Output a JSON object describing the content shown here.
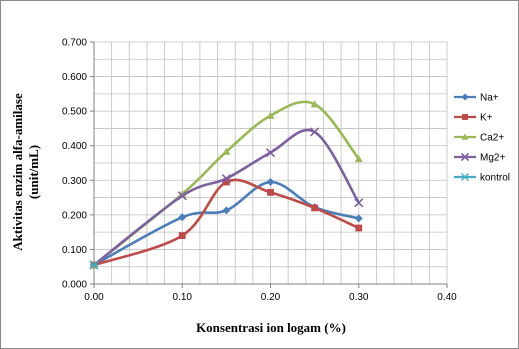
{
  "chart_data": {
    "type": "line",
    "xlabel": "Konsentrasi ion logam (%)",
    "ylabel_line1": "Aktivitas enzim alfa-amilase",
    "ylabel_line2": "(unit/mL)",
    "xlim": [
      0,
      0.4
    ],
    "ylim": [
      0,
      0.7
    ],
    "x_ticks": [
      "0.00",
      "0.10",
      "0.20",
      "0.30",
      "0.40"
    ],
    "y_ticks": [
      "0.000",
      "0.100",
      "0.200",
      "0.300",
      "0.400",
      "0.500",
      "0.600",
      "0.700"
    ],
    "grid": true,
    "smooth": true,
    "legend_position": "right",
    "series": [
      {
        "name": "Na+",
        "color": "#4a7ebb",
        "marker": "diamond",
        "x": [
          0,
          0.1,
          0.15,
          0.2,
          0.25,
          0.3
        ],
        "y": [
          0.055,
          0.193,
          0.213,
          0.295,
          0.222,
          0.19
        ]
      },
      {
        "name": "K+",
        "color": "#be4b48",
        "marker": "square",
        "x": [
          0,
          0.1,
          0.15,
          0.2,
          0.25,
          0.3
        ],
        "y": [
          0.055,
          0.14,
          0.295,
          0.265,
          0.22,
          0.162
        ]
      },
      {
        "name": "Ca2+",
        "color": "#98b954",
        "marker": "triangle",
        "x": [
          0,
          0.1,
          0.15,
          0.2,
          0.25,
          0.3
        ],
        "y": [
          0.055,
          0.26,
          0.383,
          0.487,
          0.52,
          0.362
        ]
      },
      {
        "name": "Mg2+",
        "color": "#7d60a0",
        "marker": "x",
        "x": [
          0,
          0.1,
          0.15,
          0.2,
          0.25,
          0.3
        ],
        "y": [
          0.055,
          0.255,
          0.305,
          0.38,
          0.44,
          0.235
        ]
      },
      {
        "name": "kontrol",
        "color": "#46aac5",
        "marker": "star",
        "x": [
          0
        ],
        "y": [
          0.055
        ]
      }
    ]
  }
}
